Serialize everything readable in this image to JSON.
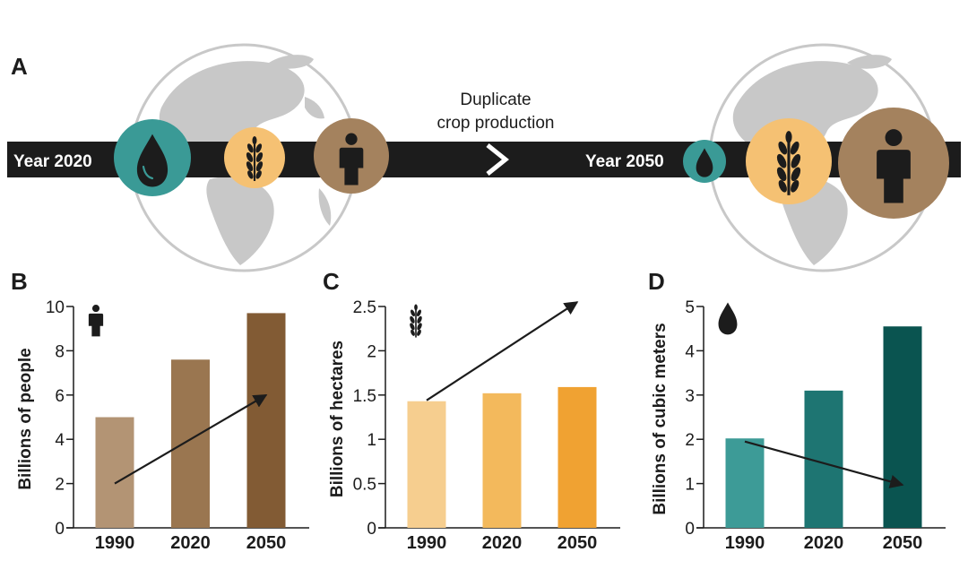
{
  "panel_a": {
    "letter": "A",
    "start_label": "Year 2020",
    "end_label": "Year 2050",
    "caption_line1": "Duplicate",
    "caption_line2": "crop production"
  },
  "colors": {
    "timeline": "#1c1c1c",
    "globe": "#c8c8c8",
    "water": "#3a9a96",
    "crop": "#f5c173",
    "people": "#a4825e",
    "icon": "#1c1c1c"
  },
  "chart_data": [
    {
      "type": "bar",
      "panel": "B",
      "ylabel": "Billions of people",
      "categories": [
        "1990",
        "2020",
        "2050"
      ],
      "values": [
        5.0,
        7.6,
        9.7
      ],
      "ylim": [
        0,
        10
      ],
      "yticks": [
        0,
        2,
        4,
        6,
        8,
        10
      ],
      "ytick_labels": [
        "0",
        "2",
        "4",
        "6",
        "8",
        "10"
      ],
      "trend": {
        "from": [
          1990,
          2.0
        ],
        "to": [
          2050,
          6.0
        ]
      },
      "colors": [
        "#b39474",
        "#9a7650",
        "#825b34"
      ],
      "icon": "person-icon"
    },
    {
      "type": "bar",
      "panel": "C",
      "ylabel": "Billions of hectares",
      "categories": [
        "1990",
        "2020",
        "2050"
      ],
      "values": [
        1.43,
        1.52,
        1.59
      ],
      "ylim": [
        0,
        2.5
      ],
      "yticks": [
        0,
        0.5,
        1,
        1.5,
        2,
        2.5
      ],
      "ytick_labels": [
        "0",
        "0.5",
        "1",
        "1.5",
        "2",
        "2.5"
      ],
      "trend": {
        "from": [
          1990,
          1.44
        ],
        "to": [
          2050,
          2.55
        ]
      },
      "colors": [
        "#f6ce8f",
        "#f3b95c",
        "#f0a232"
      ],
      "icon": "wheat-icon"
    },
    {
      "type": "bar",
      "panel": "D",
      "ylabel": "Billions of cubic meters",
      "categories": [
        "1990",
        "2020",
        "2050"
      ],
      "values": [
        2.02,
        3.1,
        4.55
      ],
      "ylim": [
        0,
        5
      ],
      "yticks": [
        0,
        1,
        2,
        3,
        4,
        5
      ],
      "ytick_labels": [
        "0",
        "1",
        "2",
        "3",
        "4",
        "5"
      ],
      "trend": {
        "from": [
          1990,
          1.95
        ],
        "to": [
          2050,
          0.97
        ]
      },
      "colors": [
        "#3d9b97",
        "#1e7572",
        "#0a5450"
      ],
      "icon": "water-drop-icon"
    }
  ]
}
